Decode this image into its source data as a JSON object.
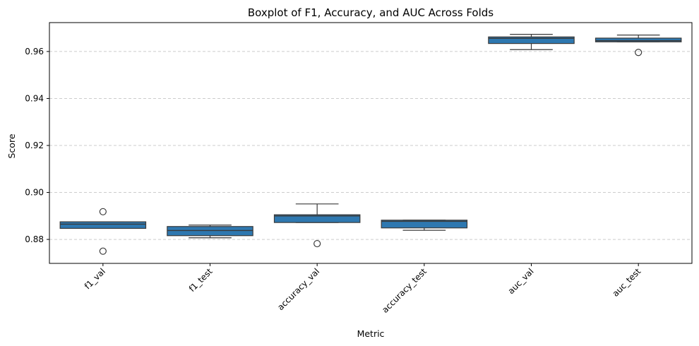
{
  "chart_data": {
    "type": "box",
    "title": "Boxplot of F1, Accuracy, and AUC Across Folds",
    "xlabel": "Metric",
    "ylabel": "Score",
    "ylim": [
      0.8698,
      0.9723
    ],
    "yticks": [
      0.88,
      0.9,
      0.92,
      0.94,
      0.96
    ],
    "ytick_labels": [
      "0.88",
      "0.90",
      "0.92",
      "0.94",
      "0.96"
    ],
    "grid": "y-dashed",
    "box_color": "#2e78b0",
    "categories": [
      "f1_val",
      "f1_test",
      "accuracy_val",
      "accuracy_test",
      "auc_val",
      "auc_test"
    ],
    "boxes": [
      {
        "label": "f1_val",
        "whisker_low": 0.8847,
        "q1": 0.8847,
        "median": 0.8865,
        "q3": 0.8875,
        "whisker_high": 0.8875,
        "outliers": [
          0.8918,
          0.875
        ]
      },
      {
        "label": "f1_test",
        "whisker_low": 0.8807,
        "q1": 0.8816,
        "median": 0.8838,
        "q3": 0.8855,
        "whisker_high": 0.8861,
        "outliers": []
      },
      {
        "label": "accuracy_val",
        "whisker_low": 0.8872,
        "q1": 0.8872,
        "median": 0.89,
        "q3": 0.8905,
        "whisker_high": 0.8951,
        "outliers": [
          0.8782
        ]
      },
      {
        "label": "accuracy_test",
        "whisker_low": 0.8839,
        "q1": 0.8849,
        "median": 0.8877,
        "q3": 0.8882,
        "whisker_high": 0.8882,
        "outliers": []
      },
      {
        "label": "auc_val",
        "whisker_low": 0.9608,
        "q1": 0.9634,
        "median": 0.9656,
        "q3": 0.9662,
        "whisker_high": 0.9673,
        "outliers": []
      },
      {
        "label": "auc_test",
        "whisker_low": 0.9641,
        "q1": 0.9641,
        "median": 0.9646,
        "q3": 0.9657,
        "whisker_high": 0.967,
        "outliers": [
          0.9596
        ]
      }
    ]
  }
}
